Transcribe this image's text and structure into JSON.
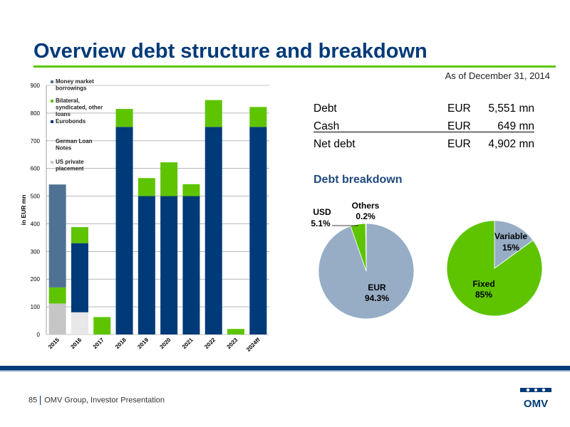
{
  "header": {
    "title": "Overview debt structure and breakdown",
    "as_of": "As of December 31, 2014"
  },
  "summary": {
    "rows": [
      {
        "label": "Debt",
        "currency": "EUR",
        "amount": "5,551 mn"
      },
      {
        "label": "Cash",
        "currency": "EUR",
        "amount": "649 mn"
      },
      {
        "label": "Net debt",
        "currency": "EUR",
        "amount": "4,902 mn"
      }
    ]
  },
  "breakdown_title": "Debt breakdown",
  "footer": {
    "page_number": "85",
    "text": "OMV Group, Investor Presentation"
  },
  "logo": {
    "text": "OMV"
  },
  "colors": {
    "money_market": "#4f7294",
    "bilateral": "#5ec400",
    "eurobonds": "#003a78",
    "german_loan_notes": "#ffffff",
    "us_private": "#c6c6c6",
    "eur_slice": "#97adc6",
    "usd_slice": "#5ec400",
    "variable_slice": "#97adc6",
    "fixed_slice": "#5ec400",
    "title": "#003a78"
  },
  "chart_data": [
    {
      "type": "bar",
      "stacked": true,
      "categories": [
        "2015",
        "2016",
        "2017",
        "2018",
        "2019",
        "2020",
        "2021",
        "2022",
        "2023",
        "2024ff"
      ],
      "series": [
        {
          "name": "US private placement",
          "values": [
            112,
            80,
            0,
            0,
            0,
            0,
            0,
            0,
            0,
            0
          ]
        },
        {
          "name": "Eurobonds",
          "values": [
            0,
            250,
            0,
            750,
            500,
            500,
            500,
            750,
            0,
            750
          ]
        },
        {
          "name": "Bilateral, syndicated, other loans",
          "values": [
            58,
            58,
            63,
            65,
            65,
            122,
            43,
            97,
            20,
            72
          ]
        },
        {
          "name": "Money market borrowings",
          "values": [
            372,
            0,
            0,
            0,
            0,
            0,
            0,
            0,
            0,
            0
          ]
        }
      ],
      "legend_items": [
        "Money market borrowings",
        "Bilateral, syndicated, other loans",
        "Eurobonds",
        "German Loan Notes",
        "US private placement"
      ],
      "ylabel": "in EUR mn",
      "xlabel": "",
      "ylim": [
        0,
        900
      ],
      "yticks": [
        0,
        100,
        200,
        300,
        400,
        500,
        600,
        700,
        800,
        900
      ],
      "grid": true,
      "legend_position": "top-left"
    },
    {
      "type": "pie",
      "labels": [
        "EUR",
        "USD",
        "Others"
      ],
      "values": [
        94.3,
        5.1,
        0.2
      ],
      "value_labels": [
        "94.3%",
        "5.1%",
        "0.2%"
      ]
    },
    {
      "type": "pie",
      "labels": [
        "Variable",
        "Fixed"
      ],
      "values": [
        15,
        85
      ],
      "value_labels": [
        "15%",
        "85%"
      ]
    }
  ]
}
